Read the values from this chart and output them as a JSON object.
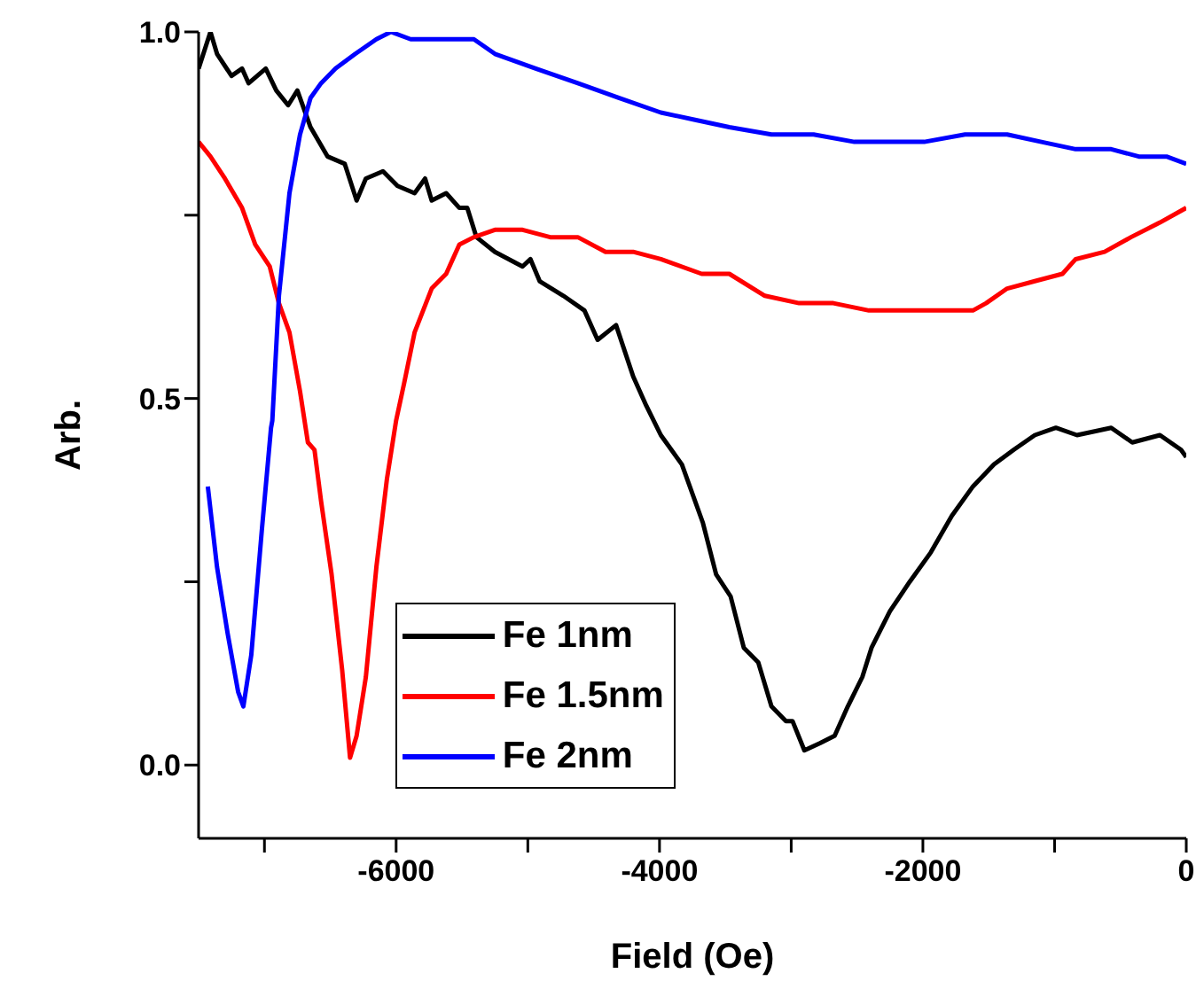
{
  "chart_data": {
    "type": "line",
    "xlabel": "Field (Oe)",
    "ylabel": "Arb.",
    "xlim": [
      -7500,
      0
    ],
    "xticks": [
      {
        "value": -7000,
        "label": null
      },
      -6000,
      {
        "value": -5000,
        "label": null
      },
      -4000,
      {
        "value": -3000,
        "label": null
      },
      -2000,
      {
        "value": -1000,
        "label": null
      },
      0
    ],
    "ylim": [
      -0.1,
      1.0
    ],
    "yticks": [
      {
        "value": 0,
        "label": "0.0"
      },
      {
        "value": 0.25,
        "label": null
      },
      {
        "value": 0.5,
        "label": "0.5"
      },
      {
        "value": 0.75,
        "label": null
      },
      {
        "value": 1,
        "label": "1.0"
      }
    ],
    "legend": "bottom left",
    "marker": "none",
    "line_style": "solid",
    "series": [
      {
        "name": "Fe 1nm",
        "color": "#000000",
        "x": [
          -7500,
          -7410,
          -7360,
          -7250,
          -7170,
          -7120,
          -6990,
          -6910,
          -6820,
          -6750,
          -6650,
          -6520,
          -6390,
          -6300,
          -6230,
          -6100,
          -5990,
          -5860,
          -5780,
          -5730,
          -5620,
          -5520,
          -5460,
          -5390,
          -5250,
          -5040,
          -4980,
          -4910,
          -4730,
          -4570,
          -4470,
          -4330,
          -4200,
          -4100,
          -3990,
          -3830,
          -3670,
          -3570,
          -3460,
          -3360,
          -3250,
          -3150,
          -3040,
          -2990,
          -2900,
          -2780,
          -2670,
          -2570,
          -2460,
          -2390,
          -2250,
          -2100,
          -1940,
          -1780,
          -1620,
          -1460,
          -1310,
          -1150,
          -990,
          -830,
          -570,
          -410,
          -200,
          -40,
          0
        ],
        "values": [
          0.95,
          1.0,
          0.97,
          0.94,
          0.95,
          0.93,
          0.95,
          0.92,
          0.9,
          0.92,
          0.87,
          0.83,
          0.82,
          0.77,
          0.8,
          0.81,
          0.79,
          0.78,
          0.8,
          0.77,
          0.78,
          0.76,
          0.76,
          0.72,
          0.7,
          0.68,
          0.69,
          0.66,
          0.64,
          0.62,
          0.58,
          0.6,
          0.53,
          0.49,
          0.45,
          0.41,
          0.33,
          0.26,
          0.23,
          0.16,
          0.14,
          0.08,
          0.06,
          0.06,
          0.02,
          0.03,
          0.04,
          0.08,
          0.12,
          0.16,
          0.21,
          0.25,
          0.29,
          0.34,
          0.38,
          0.41,
          0.43,
          0.45,
          0.46,
          0.45,
          0.46,
          0.44,
          0.45,
          0.43,
          0.42
        ]
      },
      {
        "name": "Fe 1.5nm",
        "color": "#ff0000",
        "x": [
          -7500,
          -7410,
          -7300,
          -7170,
          -7070,
          -6960,
          -6890,
          -6810,
          -6730,
          -6670,
          -6620,
          -6570,
          -6490,
          -6410,
          -6350,
          -6300,
          -6230,
          -6150,
          -6070,
          -6000,
          -5940,
          -5860,
          -5730,
          -5620,
          -5520,
          -5410,
          -5250,
          -5040,
          -4830,
          -4620,
          -4410,
          -4200,
          -3990,
          -3680,
          -3470,
          -3200,
          -2940,
          -2680,
          -2410,
          -2150,
          -1890,
          -1620,
          -1520,
          -1360,
          -1150,
          -940,
          -840,
          -620,
          -420,
          -200,
          0
        ],
        "values": [
          0.85,
          0.83,
          0.8,
          0.76,
          0.71,
          0.68,
          0.63,
          0.59,
          0.51,
          0.44,
          0.43,
          0.36,
          0.26,
          0.13,
          0.01,
          0.04,
          0.12,
          0.27,
          0.39,
          0.47,
          0.52,
          0.59,
          0.65,
          0.67,
          0.71,
          0.72,
          0.73,
          0.73,
          0.72,
          0.72,
          0.7,
          0.7,
          0.69,
          0.67,
          0.67,
          0.64,
          0.63,
          0.63,
          0.62,
          0.62,
          0.62,
          0.62,
          0.63,
          0.65,
          0.66,
          0.67,
          0.69,
          0.7,
          0.72,
          0.74,
          0.76
        ]
      },
      {
        "name": "Fe 2nm",
        "color": "#0000ff",
        "x": [
          -7430,
          -7360,
          -7280,
          -7200,
          -7160,
          -7100,
          -7020,
          -6950,
          -6940,
          -6890,
          -6810,
          -6730,
          -6650,
          -6570,
          -6460,
          -6310,
          -6150,
          -6040,
          -5890,
          -5570,
          -5410,
          -5250,
          -4940,
          -4620,
          -4310,
          -3990,
          -3730,
          -3470,
          -3150,
          -2830,
          -2520,
          -2260,
          -1990,
          -1680,
          -1360,
          -1100,
          -840,
          -570,
          -360,
          -150,
          0
        ],
        "values": [
          0.38,
          0.27,
          0.18,
          0.1,
          0.08,
          0.15,
          0.32,
          0.46,
          0.47,
          0.64,
          0.78,
          0.86,
          0.91,
          0.93,
          0.95,
          0.97,
          0.99,
          1.0,
          0.99,
          0.99,
          0.99,
          0.97,
          0.95,
          0.93,
          0.91,
          0.89,
          0.88,
          0.87,
          0.86,
          0.86,
          0.85,
          0.85,
          0.85,
          0.86,
          0.86,
          0.85,
          0.84,
          0.84,
          0.83,
          0.83,
          0.82
        ]
      }
    ]
  }
}
